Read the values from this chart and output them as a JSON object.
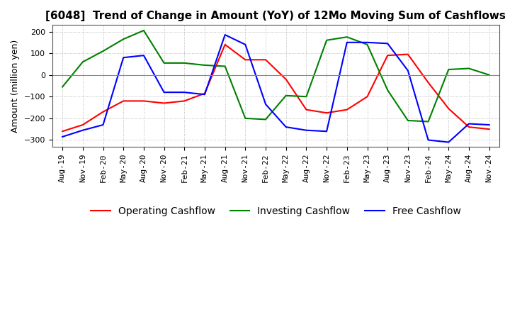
{
  "title": "[6048]  Trend of Change in Amount (YoY) of 12Mo Moving Sum of Cashflows",
  "ylabel": "Amount (million yen)",
  "ylim": [
    -330,
    230
  ],
  "yticks": [
    -300,
    -200,
    -100,
    0,
    100,
    200
  ],
  "x_labels": [
    "Aug-19",
    "Nov-19",
    "Feb-20",
    "May-20",
    "Aug-20",
    "Nov-20",
    "Feb-21",
    "May-21",
    "Aug-21",
    "Nov-21",
    "Feb-22",
    "May-22",
    "Aug-22",
    "Nov-22",
    "Feb-23",
    "May-23",
    "Aug-23",
    "Nov-23",
    "Feb-24",
    "May-24",
    "Aug-24",
    "Nov-24"
  ],
  "operating": [
    -260,
    -230,
    -170,
    -120,
    -120,
    -130,
    -120,
    -85,
    140,
    70,
    70,
    -20,
    -160,
    -175,
    -160,
    -100,
    90,
    95,
    -35,
    -155,
    -240,
    -250
  ],
  "investing": [
    -55,
    60,
    110,
    165,
    205,
    55,
    55,
    45,
    40,
    -200,
    -205,
    -95,
    -100,
    160,
    175,
    140,
    -70,
    -210,
    -215,
    25,
    30,
    0
  ],
  "free": [
    -285,
    -255,
    -230,
    80,
    90,
    -80,
    -80,
    -90,
    185,
    140,
    -135,
    -240,
    -255,
    -260,
    150,
    150,
    145,
    20,
    -300,
    -310,
    -225,
    -230
  ],
  "line_colors": {
    "operating": "#ff0000",
    "investing": "#008000",
    "free": "#0000ff"
  },
  "legend_labels": [
    "Operating Cashflow",
    "Investing Cashflow",
    "Free Cashflow"
  ],
  "grid_color": "#aaaaaa",
  "background_color": "#ffffff",
  "title_fontsize": 11,
  "axis_fontsize": 9,
  "tick_fontsize": 8
}
